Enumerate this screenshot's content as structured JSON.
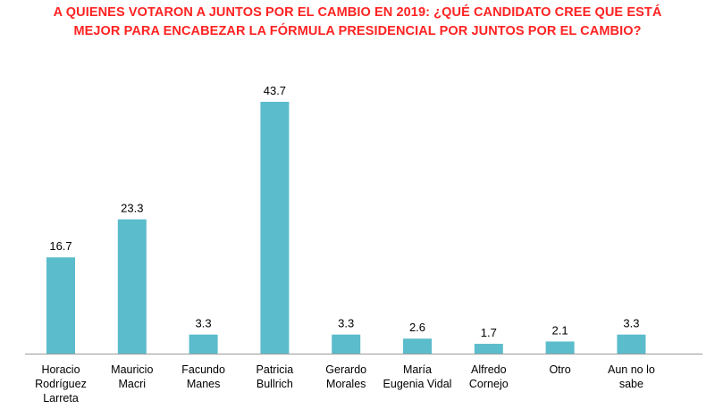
{
  "title_lines": [
    "A QUIENES VOTARON A JUNTOS POR EL CAMBIO EN 2019: ¿QUÉ CANDIDATO CREE QUE ESTÁ",
    "MEJOR PARA ENCABEZAR LA FÓRMULA PRESIDENCIAL POR JUNTOS POR EL CAMBIO?"
  ],
  "colors": {
    "bar": "#5bbccc",
    "title": "#ff2222",
    "axis": "#9a9a9a"
  },
  "chart_data": {
    "type": "bar",
    "title": "A QUIENES VOTARON A JUNTOS POR EL CAMBIO EN 2019: ¿QUÉ CANDIDATO CREE QUE ESTÁ MEJOR PARA ENCABEZAR LA FÓRMULA PRESIDENCIAL POR JUNTOS POR EL CAMBIO?",
    "categories": [
      "Horacio Rodríguez Larreta",
      "Mauricio Macri",
      "Facundo Manes",
      "Patricia Bullrich",
      "Gerardo Morales",
      "María Eugenia Vidal",
      "Alfredo Cornejo",
      "Otro",
      "Aun no lo sabe"
    ],
    "category_lines": [
      [
        "Horacio",
        "Rodríguez",
        "Larreta"
      ],
      [
        "Mauricio",
        "Macri"
      ],
      [
        "Facundo",
        "Manes"
      ],
      [
        "Patricia",
        "Bullrich"
      ],
      [
        "Gerardo",
        "Morales"
      ],
      [
        "María",
        "Eugenia Vidal"
      ],
      [
        "Alfredo",
        "Cornejo"
      ],
      [
        "Otro"
      ],
      [
        "Aun no lo",
        "sabe"
      ]
    ],
    "values": [
      16.7,
      23.3,
      3.3,
      43.7,
      3.3,
      2.6,
      1.7,
      2.1,
      3.3
    ],
    "value_labels": [
      "16.7",
      "23.3",
      "3.3",
      "43.7",
      "3.3",
      "2.6",
      "1.7",
      "2.1",
      "3.3"
    ],
    "xlabel": "",
    "ylabel": "",
    "ylim": [
      0,
      43.7
    ],
    "grid": false,
    "legend": "none"
  }
}
